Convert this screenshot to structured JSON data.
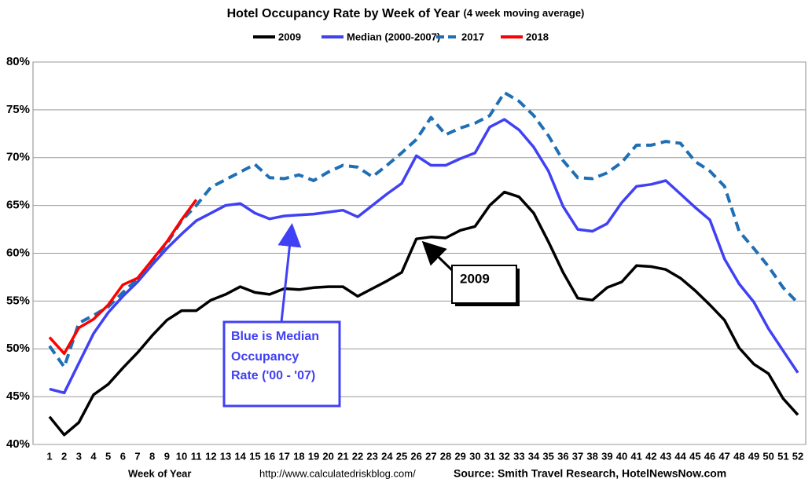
{
  "chart_data": {
    "type": "line",
    "title": "Hotel Occupancy Rate by  Week of Year",
    "subtitle": "(4 week moving average)",
    "x_label": "Week of Year",
    "url": "http://www.calculatedriskblog.com/",
    "source": "Source: Smith Travel Research, HotelNewsNow.com",
    "annotation_2009": "2009",
    "annotation_median": [
      "Blue is Median",
      "Occupancy",
      "Rate ('00 - '07)"
    ],
    "categories": [
      1,
      2,
      3,
      4,
      5,
      6,
      7,
      8,
      9,
      10,
      11,
      12,
      13,
      14,
      15,
      16,
      17,
      18,
      19,
      20,
      21,
      22,
      23,
      24,
      25,
      26,
      27,
      28,
      29,
      30,
      31,
      32,
      33,
      34,
      35,
      36,
      37,
      38,
      39,
      40,
      41,
      42,
      43,
      44,
      45,
      46,
      47,
      48,
      49,
      50,
      51,
      52
    ],
    "ylim": [
      40,
      80
    ],
    "yticks": [
      {
        "value": 40,
        "label": "40%"
      },
      {
        "value": 45,
        "label": "45%"
      },
      {
        "value": 50,
        "label": "50%"
      },
      {
        "value": 55,
        "label": "55%"
      },
      {
        "value": 60,
        "label": "60%"
      },
      {
        "value": 65,
        "label": "65%"
      },
      {
        "value": 70,
        "label": "70%"
      },
      {
        "value": 75,
        "label": "75%"
      },
      {
        "value": 80,
        "label": "80%"
      }
    ],
    "grid": true,
    "series": [
      {
        "name": "2009",
        "color": "#000000",
        "dashed": false,
        "values": [
          42.9,
          41.0,
          42.3,
          45.2,
          46.3,
          48.0,
          49.6,
          51.4,
          53.0,
          54.0,
          54.0,
          55.1,
          55.7,
          56.5,
          55.9,
          55.7,
          56.3,
          56.2,
          56.4,
          56.5,
          56.5,
          55.5,
          56.3,
          57.1,
          58.0,
          61.5,
          61.7,
          61.6,
          62.4,
          62.8,
          65.0,
          66.4,
          65.9,
          64.2,
          61.2,
          58.0,
          55.3,
          55.1,
          56.4,
          57.0,
          58.7,
          58.6,
          58.3,
          57.4,
          56.1,
          54.6,
          53.0,
          50.1,
          48.4,
          47.4,
          44.8,
          43.1
        ]
      },
      {
        "name": "Median (2000-2007)",
        "color": "#4040f5",
        "dashed": false,
        "values": [
          45.8,
          45.4,
          48.5,
          51.6,
          53.8,
          55.5,
          57.0,
          58.8,
          60.5,
          62.0,
          63.4,
          64.2,
          65.0,
          65.2,
          64.2,
          63.6,
          63.9,
          64.0,
          64.1,
          64.3,
          64.5,
          63.8,
          65.0,
          66.2,
          67.3,
          70.2,
          69.2,
          69.2,
          69.9,
          70.5,
          73.2,
          74.0,
          72.9,
          71.1,
          68.6,
          64.9,
          62.5,
          62.3,
          63.1,
          65.3,
          67.0,
          67.2,
          67.6,
          66.2,
          64.8,
          63.5,
          59.4,
          56.8,
          54.9,
          52.1,
          49.8,
          47.5
        ]
      },
      {
        "name": "2017",
        "color": "#1f6fb5",
        "dashed": true,
        "values": [
          50.3,
          48.1,
          52.7,
          53.5,
          54.4,
          55.9,
          57.3,
          59.2,
          61.0,
          63.4,
          65.0,
          66.9,
          67.7,
          68.5,
          69.3,
          67.9,
          67.8,
          68.2,
          67.6,
          68.5,
          69.2,
          69.0,
          68.0,
          69.2,
          70.5,
          71.9,
          74.2,
          72.4,
          73.1,
          73.6,
          74.4,
          76.8,
          75.9,
          74.4,
          72.3,
          69.7,
          67.9,
          67.8,
          68.4,
          69.5,
          71.3,
          71.3,
          71.7,
          71.5,
          69.6,
          68.6,
          67.0,
          62.3,
          60.5,
          58.6,
          56.4,
          54.8
        ]
      },
      {
        "name": "2018",
        "color": "#ff0000",
        "dashed": false,
        "values": [
          51.2,
          49.5,
          52.2,
          53.1,
          54.6,
          56.7,
          57.4,
          59.3,
          61.2,
          63.5,
          65.6,
          null,
          null,
          null,
          null,
          null,
          null,
          null,
          null,
          null,
          null,
          null,
          null,
          null,
          null,
          null,
          null,
          null,
          null,
          null,
          null,
          null,
          null,
          null,
          null,
          null,
          null,
          null,
          null,
          null,
          null,
          null,
          null,
          null,
          null,
          null,
          null,
          null,
          null,
          null,
          null,
          null
        ]
      }
    ]
  }
}
